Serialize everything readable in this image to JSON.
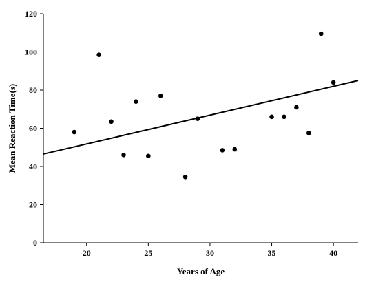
{
  "chart_data": {
    "type": "scatter",
    "title": "",
    "xlabel": "Years of Age",
    "ylabel": "Mean Reaction Time(s)",
    "xlim": [
      16.5,
      42
    ],
    "ylim": [
      0,
      120
    ],
    "x_ticks": [
      20,
      25,
      30,
      35,
      40
    ],
    "y_ticks": [
      0,
      20,
      40,
      60,
      80,
      100,
      120
    ],
    "grid": false,
    "legend": "none",
    "colors": {
      "points": "#000000",
      "line": "#000000"
    },
    "points": [
      {
        "x": 19,
        "y": 58
      },
      {
        "x": 21,
        "y": 98.5
      },
      {
        "x": 22,
        "y": 63.5
      },
      {
        "x": 23,
        "y": 46
      },
      {
        "x": 24,
        "y": 74
      },
      {
        "x": 25,
        "y": 45.5
      },
      {
        "x": 26,
        "y": 77
      },
      {
        "x": 28,
        "y": 34.5
      },
      {
        "x": 29,
        "y": 65
      },
      {
        "x": 31,
        "y": 48.5
      },
      {
        "x": 32,
        "y": 49
      },
      {
        "x": 35,
        "y": 66
      },
      {
        "x": 36,
        "y": 66
      },
      {
        "x": 37,
        "y": 71
      },
      {
        "x": 38,
        "y": 57.5
      },
      {
        "x": 39,
        "y": 109.5
      },
      {
        "x": 40,
        "y": 84
      }
    ],
    "fit_line": {
      "x": [
        16.5,
        42
      ],
      "y": [
        46.5,
        85
      ]
    }
  }
}
